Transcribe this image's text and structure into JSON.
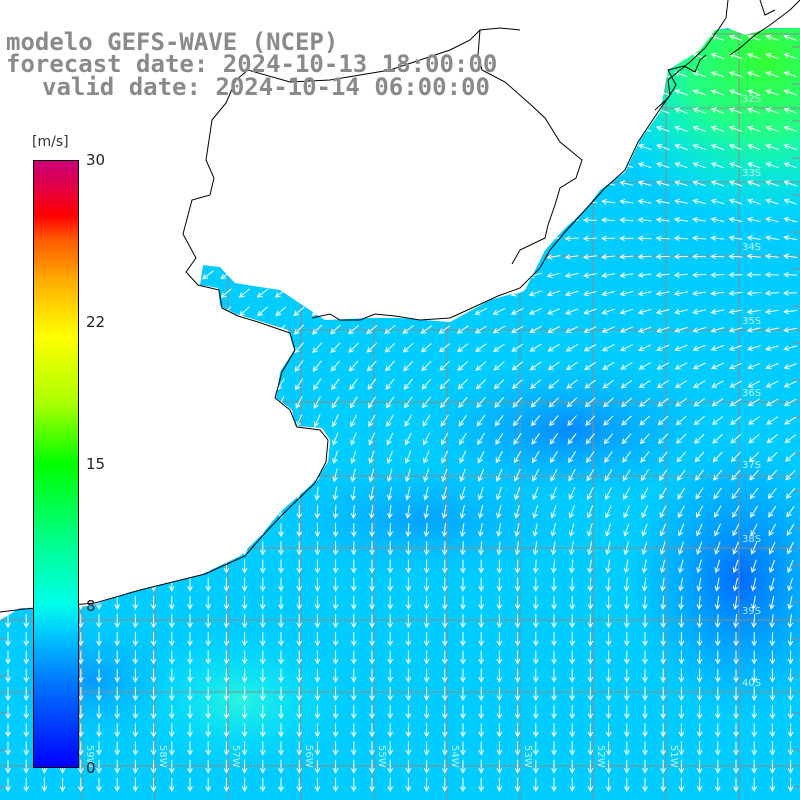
{
  "title": {
    "line1": "modelo GEFS-WAVE (NCEP)",
    "line2": "forecast date: 2024-10-13 18:00:00",
    "line3": "valid date: 2024-10-14 06:00:00"
  },
  "colorbar": {
    "unit": "[m/s]",
    "ticks": [
      "30",
      "22",
      "15",
      "8",
      "0"
    ],
    "tick_values": [
      30,
      22,
      15,
      8,
      0
    ],
    "range": [
      0,
      30
    ]
  },
  "lat_labels": [
    "32S",
    "33S",
    "34S",
    "35S",
    "36S",
    "37S",
    "38S",
    "39S",
    "40S"
  ],
  "lon_labels": [
    "59W",
    "58W",
    "57W",
    "56W",
    "55W",
    "54W",
    "53W",
    "52W",
    "51W"
  ],
  "colors": {
    "land": "#ffffff",
    "coast": "#000000",
    "grid": "#8c8c8c",
    "arrow": "#ffffff",
    "title": "#8a8a8a"
  },
  "chart_data": {
    "type": "heatmap",
    "field": "wind speed (m/s) with direction vectors",
    "vmin": 0,
    "vmax": 30,
    "dominant_direction": "towards south-southwest"
  }
}
